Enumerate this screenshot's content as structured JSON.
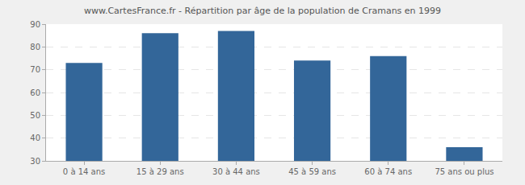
{
  "chart_data": {
    "type": "bar",
    "title": "www.CartesFrance.fr - Répartition par âge de la population de Cramans en 1999",
    "categories": [
      "0 à 14 ans",
      "15 à 29 ans",
      "30 à 44 ans",
      "45 à 59 ans",
      "60 à 74 ans",
      "75 ans ou plus"
    ],
    "values": [
      73,
      86,
      87,
      74,
      76,
      36
    ],
    "color": "#336699",
    "ylim": [
      30,
      90
    ],
    "yticks": [
      30,
      40,
      50,
      60,
      70,
      80,
      90
    ],
    "grid": true
  }
}
